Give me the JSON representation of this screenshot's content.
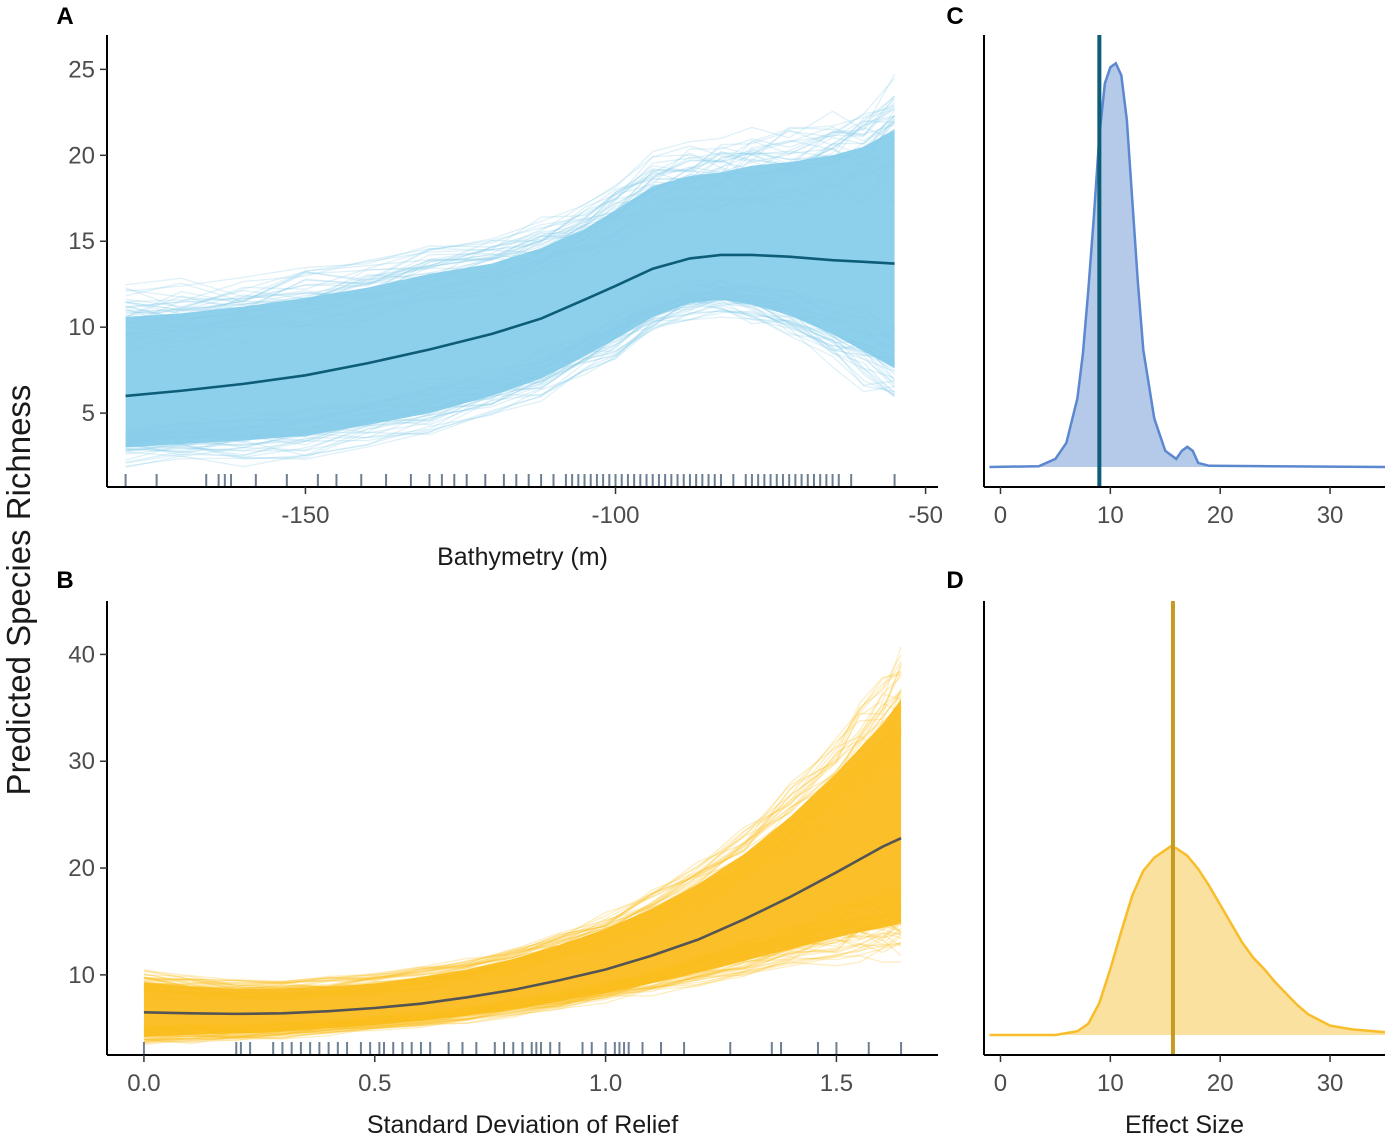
{
  "figure": {
    "y_axis_label": "Predicted Species Richness"
  },
  "colors": {
    "bathy_band": "#87ceeb",
    "bathy_line": "#0e5d78",
    "bathy_density": "#5b88cf",
    "bathy_vline": "#0e5d78",
    "relief_band": "#fbbd1e",
    "relief_line": "#545454",
    "relief_density": "#f7bd2a",
    "relief_vline": "#c79a22",
    "rug": "#6e7f93",
    "axis": "#000000"
  },
  "chart_data": [
    {
      "panel": "A",
      "type": "line",
      "xlabel": "Bathymetry (m)",
      "ylabel": "Predicted Species Richness",
      "xlim": [
        -182,
        -48
      ],
      "ylim": [
        0.7,
        27
      ],
      "xticks": [
        -150,
        -100,
        -50
      ],
      "xtick_labels": [
        "-150",
        "-100",
        "-50"
      ],
      "yticks": [
        5,
        10,
        15,
        20,
        25
      ],
      "ytick_labels": [
        "5",
        "10",
        "15",
        "20",
        "25"
      ],
      "mean_line": {
        "x": [
          -179,
          -170,
          -160,
          -150,
          -140,
          -130,
          -120,
          -112,
          -105,
          -100,
          -94,
          -88,
          -83,
          -78,
          -72,
          -65,
          -60,
          -55
        ],
        "y": [
          6.0,
          6.3,
          6.7,
          7.2,
          7.9,
          8.7,
          9.6,
          10.5,
          11.6,
          12.4,
          13.4,
          14.0,
          14.2,
          14.2,
          14.1,
          13.9,
          13.8,
          13.7
        ]
      },
      "band_lower": [
        3.0,
        3.2,
        3.4,
        3.7,
        4.3,
        5.0,
        6.0,
        7.0,
        8.3,
        9.3,
        10.6,
        11.4,
        11.6,
        11.3,
        10.7,
        9.6,
        8.6,
        7.6
      ],
      "band_upper": [
        10.6,
        10.8,
        11.2,
        11.7,
        12.3,
        13.1,
        13.7,
        14.6,
        15.7,
        16.8,
        18.2,
        18.8,
        19.0,
        19.4,
        19.6,
        20.0,
        20.5,
        21.5
      ],
      "rug_x": [
        -179,
        -174,
        -166,
        -164,
        -163,
        -162,
        -158,
        -153,
        -148,
        -145,
        -141,
        -137,
        -133,
        -130,
        -128,
        -126,
        -124,
        -121,
        -118,
        -116,
        -114,
        -112,
        -110,
        -108,
        -107,
        -106,
        -105,
        -104,
        -103,
        -102,
        -101,
        -100,
        -99,
        -98,
        -97,
        -96,
        -95,
        -94,
        -93,
        -92,
        -91,
        -90,
        -89,
        -88,
        -87,
        -86,
        -85,
        -84,
        -83,
        -81,
        -79,
        -78,
        -77,
        -76,
        -75,
        -74,
        -73,
        -72,
        -71,
        -70,
        -69,
        -68,
        -67,
        -66,
        -65,
        -64,
        -62,
        -55
      ]
    },
    {
      "panel": "B",
      "type": "line",
      "xlabel": "Standard Deviation of Relief",
      "ylabel": "Predicted Species Richness",
      "xlim": [
        -0.08,
        1.72
      ],
      "ylim": [
        2.5,
        45
      ],
      "xticks": [
        0.0,
        0.5,
        1.0,
        1.5
      ],
      "xtick_labels": [
        "0.0",
        "0.5",
        "1.0",
        "1.5"
      ],
      "yticks": [
        10,
        20,
        30,
        40
      ],
      "ytick_labels": [
        "10",
        "20",
        "30",
        "40"
      ],
      "mean_line": {
        "x": [
          0.0,
          0.1,
          0.2,
          0.3,
          0.4,
          0.5,
          0.6,
          0.7,
          0.8,
          0.9,
          1.0,
          1.1,
          1.2,
          1.3,
          1.4,
          1.5,
          1.55,
          1.6,
          1.64
        ],
        "y": [
          6.5,
          6.4,
          6.35,
          6.4,
          6.6,
          6.9,
          7.3,
          7.9,
          8.6,
          9.5,
          10.5,
          11.8,
          13.3,
          15.2,
          17.3,
          19.6,
          20.8,
          22.0,
          22.8
        ]
      },
      "band_lower": [
        4.2,
        4.4,
        4.5,
        4.7,
        5.0,
        5.3,
        5.7,
        6.2,
        6.8,
        7.5,
        8.3,
        9.2,
        10.2,
        11.3,
        12.4,
        13.5,
        14.0,
        14.4,
        14.8
      ],
      "band_upper": [
        9.3,
        8.9,
        8.7,
        8.7,
        8.9,
        9.2,
        9.8,
        10.5,
        11.5,
        12.8,
        14.3,
        16.2,
        18.5,
        21.3,
        24.8,
        28.9,
        31.2,
        33.5,
        35.8
      ],
      "rug_x": [
        0.0,
        0.2,
        0.21,
        0.23,
        0.28,
        0.3,
        0.32,
        0.34,
        0.36,
        0.38,
        0.4,
        0.42,
        0.44,
        0.47,
        0.49,
        0.51,
        0.52,
        0.54,
        0.56,
        0.58,
        0.6,
        0.62,
        0.66,
        0.69,
        0.72,
        0.76,
        0.78,
        0.8,
        0.82,
        0.84,
        0.85,
        0.86,
        0.88,
        0.9,
        0.95,
        0.97,
        1.0,
        1.02,
        1.03,
        1.04,
        1.05,
        1.08,
        1.12,
        1.17,
        1.27,
        1.36,
        1.38,
        1.46,
        1.5,
        1.57,
        1.64
      ]
    },
    {
      "panel": "C",
      "type": "area",
      "xlabel": "",
      "xlim": [
        -1.5,
        35
      ],
      "ylim": [
        0,
        1.07
      ],
      "xticks": [
        0,
        10,
        20,
        30
      ],
      "xtick_labels": [
        "0",
        "10",
        "20",
        "30"
      ],
      "vline_x": 9.0,
      "density": {
        "x": [
          -1,
          3.5,
          5,
          6,
          7,
          7.5,
          8,
          8.5,
          9,
          9.5,
          10,
          10.5,
          11,
          11.5,
          12,
          12.5,
          13,
          14,
          15,
          16,
          16.5,
          17,
          17.5,
          18,
          19,
          35
        ],
        "y": [
          0,
          0.002,
          0.02,
          0.06,
          0.17,
          0.28,
          0.44,
          0.62,
          0.82,
          0.95,
          0.99,
          1.0,
          0.97,
          0.86,
          0.66,
          0.46,
          0.29,
          0.12,
          0.04,
          0.02,
          0.04,
          0.05,
          0.04,
          0.01,
          0.003,
          0
        ]
      }
    },
    {
      "panel": "D",
      "type": "area",
      "xlabel": "Effect Size",
      "xlim": [
        -1.5,
        35
      ],
      "ylim": [
        0,
        2.3
      ],
      "xticks": [
        0,
        10,
        20,
        30
      ],
      "xtick_labels": [
        "0",
        "10",
        "20",
        "30"
      ],
      "vline_x": 15.7,
      "density": {
        "x": [
          -1,
          5,
          7,
          8,
          9,
          10,
          11,
          12,
          13,
          14,
          15,
          15.5,
          16,
          17,
          18,
          19,
          20,
          21,
          22,
          23,
          24,
          25,
          26,
          27,
          28,
          30,
          32,
          35
        ],
        "y": [
          0,
          0.0,
          0.02,
          0.06,
          0.17,
          0.35,
          0.55,
          0.74,
          0.87,
          0.94,
          0.98,
          1.0,
          0.99,
          0.95,
          0.88,
          0.79,
          0.69,
          0.59,
          0.49,
          0.41,
          0.35,
          0.28,
          0.22,
          0.16,
          0.11,
          0.05,
          0.03,
          0.015
        ]
      }
    }
  ]
}
